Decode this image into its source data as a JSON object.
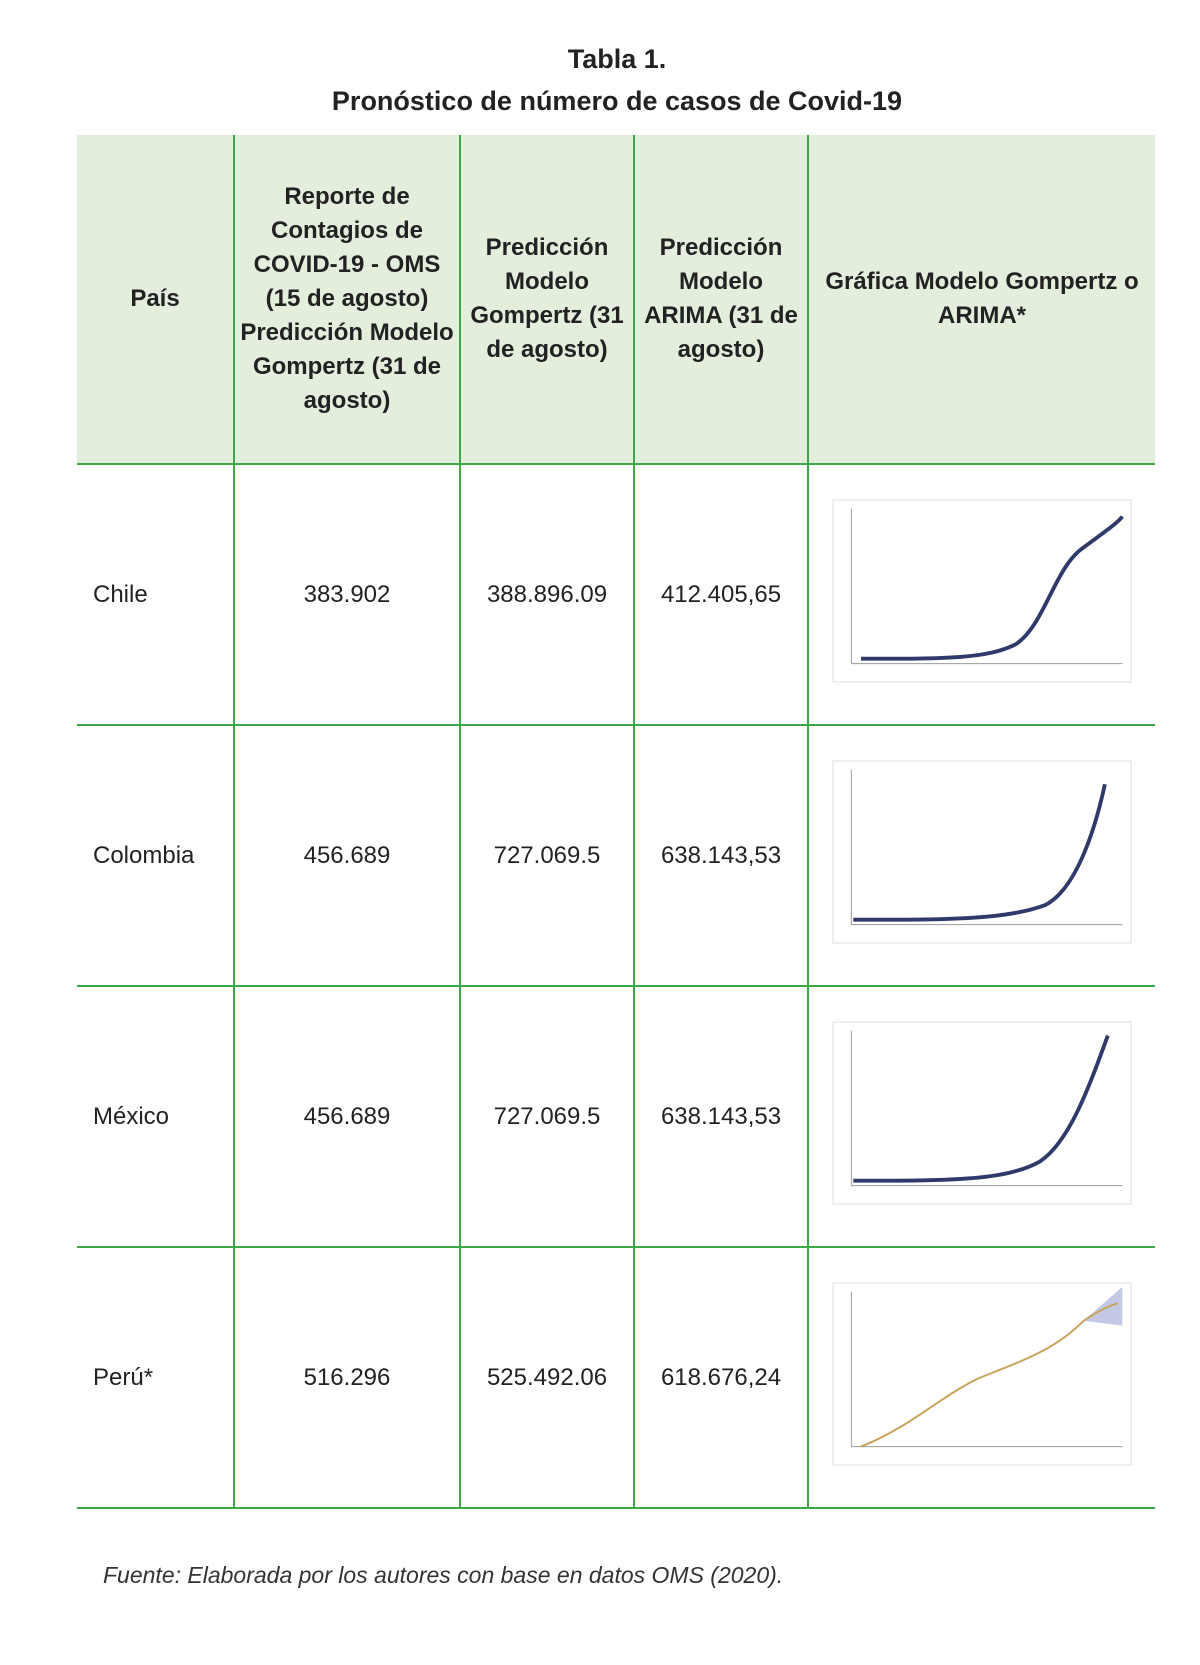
{
  "title": [
    "Tabla 1.",
    "Pronóstico de número de casos de Covid-19"
  ],
  "table": {
    "header": [
      "País",
      "Reporte de Contagios de COVID-19 - OMS (15 de agosto) Predicción Modelo Gompertz (31 de agosto)",
      "Predicción Modelo Gompertz (31 de agosto)",
      "Predicción Modelo ARIMA (31 de agosto)",
      "Gráfica Modelo Gompertz o ARIMA*"
    ],
    "rows": [
      [
        "Chile",
        "383.902",
        "388.896.09",
        "412.405,65"
      ],
      [
        "Colombia",
        "456.689",
        "727.069.5",
        "638.143,53"
      ],
      [
        "México",
        "456.689",
        "727.069.5",
        "638.143,53"
      ],
      [
        "Perú*",
        "516.296",
        "525.492.06",
        "618.676,24"
      ]
    ]
  },
  "footer": "Fuente: Elaborada por los autores con base en datos OMS (2020)."
}
